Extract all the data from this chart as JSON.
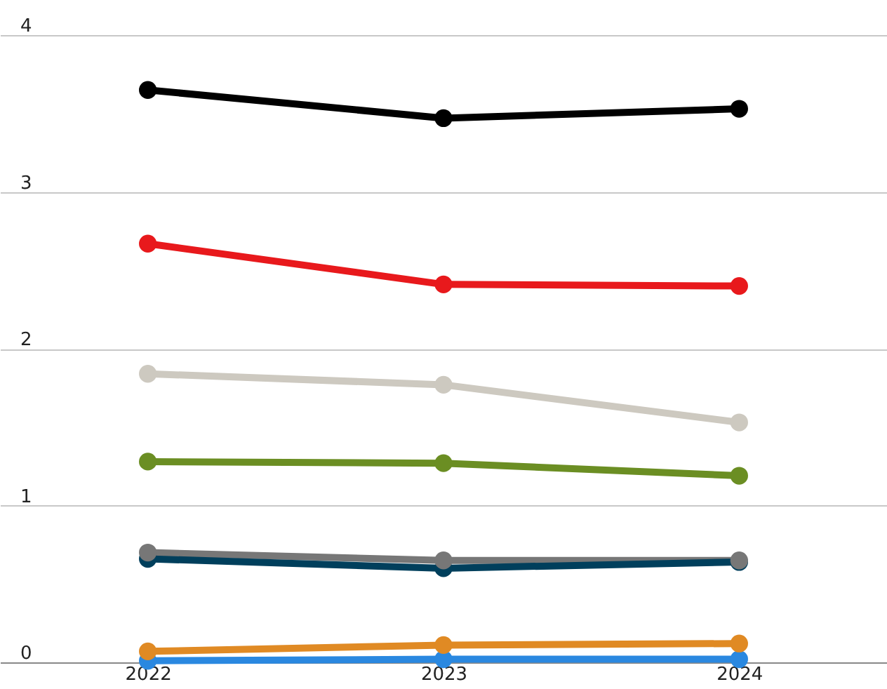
{
  "chart_data": {
    "type": "line",
    "categories": [
      "2022",
      "2023",
      "2024"
    ],
    "series": [
      {
        "color": "#000000",
        "values": [
          3.65,
          3.47,
          3.53
        ]
      },
      {
        "color": "#e8191c",
        "values": [
          2.67,
          2.41,
          2.4
        ]
      },
      {
        "color": "#cdc9c0",
        "values": [
          1.84,
          1.77,
          1.53
        ]
      },
      {
        "color": "#6b8e23",
        "values": [
          1.28,
          1.27,
          1.19
        ]
      },
      {
        "color": "#777777",
        "values": [
          0.7,
          0.65,
          0.65
        ]
      },
      {
        "color": "#003f5c",
        "values": [
          0.66,
          0.6,
          0.64
        ]
      },
      {
        "color": "#e08a24",
        "values": [
          0.07,
          0.11,
          0.12
        ]
      },
      {
        "color": "#2a88e0",
        "values": [
          0.01,
          0.02,
          0.02
        ]
      }
    ],
    "ylim": [
      0,
      4
    ],
    "yticks": [
      0,
      1,
      2,
      3,
      4
    ],
    "grid": "y",
    "marker": "circle",
    "line_style": "solid",
    "legend": false
  }
}
